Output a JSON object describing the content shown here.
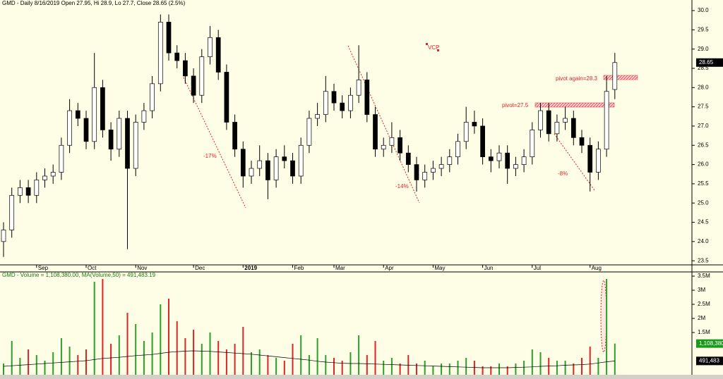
{
  "chart_data": [
    {
      "type": "candlestick",
      "title": "GMD - Daily 8/16/2019 Open 27.95, Hi 28.9, Lo 27.7, Close 28.65 (2.5%)",
      "categories": [
        null,
        null,
        null,
        null,
        "Sep",
        null,
        null,
        null,
        null,
        null,
        "Oct",
        null,
        null,
        null,
        null,
        null,
        "Nov",
        null,
        null,
        null,
        null,
        null,
        null,
        "Dec",
        null,
        null,
        null,
        null,
        null,
        "2019",
        null,
        null,
        null,
        null,
        null,
        "Feb",
        null,
        null,
        null,
        null,
        "Mar",
        null,
        null,
        null,
        null,
        null,
        "Apr",
        null,
        null,
        null,
        null,
        null,
        "May",
        null,
        null,
        null,
        null,
        null,
        "Jun",
        null,
        null,
        null,
        null,
        null,
        "Jul",
        null,
        null,
        null,
        null,
        null,
        null,
        "Aug",
        null,
        null,
        null
      ],
      "open": [
        24.0,
        24.3,
        25.2,
        25.4,
        25.2,
        25.6,
        25.7,
        25.8,
        26.5,
        27.4,
        27.2,
        26.6,
        28.0,
        26.9,
        26.4,
        27.2,
        25.9,
        27.1,
        27.4,
        28.1,
        29.7,
        28.9,
        28.7,
        28.3,
        27.8,
        28.8,
        29.3,
        28.4,
        27.1,
        26.4,
        25.7,
        25.9,
        26.1,
        25.6,
        26.2,
        26.1,
        25.7,
        26.5,
        27.2,
        27.3,
        27.9,
        27.6,
        27.4,
        27.8,
        28.2,
        27.3,
        26.4,
        26.5,
        26.7,
        26.3,
        26.0,
        25.6,
        25.8,
        25.9,
        26.0,
        26.2,
        26.6,
        27.1,
        27.0,
        26.2,
        26.1,
        26.3,
        25.9,
        26.0,
        26.2,
        26.9,
        27.4,
        26.8,
        27.1,
        27.2,
        26.7,
        26.5,
        25.8,
        26.4,
        27.95
      ],
      "high": [
        24.5,
        25.4,
        25.6,
        25.6,
        25.8,
        25.9,
        26.0,
        26.7,
        27.7,
        27.6,
        27.4,
        28.9,
        28.2,
        27.1,
        27.4,
        27.4,
        27.3,
        27.6,
        28.3,
        29.9,
        29.9,
        29.1,
        28.9,
        28.5,
        29.0,
        29.6,
        29.5,
        28.6,
        27.3,
        26.6,
        26.1,
        26.5,
        26.3,
        26.4,
        26.5,
        26.3,
        26.7,
        27.4,
        27.6,
        28.3,
        28.1,
        27.8,
        28.0,
        29.1,
        28.4,
        27.5,
        26.7,
        27.1,
        26.9,
        26.5,
        26.2,
        26.0,
        26.1,
        26.2,
        26.4,
        26.8,
        27.5,
        27.4,
        27.2,
        26.4,
        26.5,
        26.5,
        26.2,
        26.4,
        27.1,
        27.6,
        27.6,
        27.3,
        27.5,
        27.4,
        26.9,
        26.7,
        26.6,
        28.3,
        28.9
      ],
      "low": [
        23.6,
        24.1,
        25.0,
        25.0,
        25.0,
        25.4,
        25.5,
        25.6,
        26.3,
        27.0,
        26.4,
        26.4,
        26.7,
        26.1,
        26.2,
        23.8,
        25.7,
        26.9,
        27.2,
        27.9,
        28.7,
        28.5,
        28.1,
        27.6,
        27.6,
        28.6,
        28.2,
        26.9,
        26.2,
        25.4,
        25.5,
        25.7,
        25.1,
        25.4,
        25.9,
        25.5,
        25.5,
        26.3,
        27.0,
        27.1,
        27.4,
        27.2,
        27.2,
        27.6,
        27.1,
        26.2,
        26.2,
        26.3,
        26.1,
        25.8,
        25.3,
        25.4,
        25.6,
        25.7,
        25.8,
        26.0,
        26.4,
        26.8,
        26.0,
        25.8,
        25.9,
        25.5,
        25.7,
        25.8,
        26.0,
        26.7,
        26.6,
        26.6,
        26.9,
        26.5,
        26.3,
        25.3,
        25.6,
        26.2,
        27.7
      ],
      "close": [
        24.3,
        25.2,
        25.4,
        25.2,
        25.6,
        25.7,
        25.8,
        26.5,
        27.4,
        27.2,
        26.6,
        28.0,
        26.9,
        26.4,
        27.2,
        25.9,
        27.1,
        27.4,
        28.1,
        29.7,
        28.9,
        28.7,
        28.3,
        27.8,
        28.8,
        29.3,
        28.4,
        27.1,
        26.4,
        25.7,
        25.9,
        26.1,
        25.6,
        26.2,
        26.1,
        25.7,
        26.5,
        27.2,
        27.3,
        27.9,
        27.6,
        27.4,
        27.8,
        28.2,
        27.3,
        26.4,
        26.5,
        26.7,
        26.3,
        26.0,
        25.6,
        25.8,
        25.9,
        26.0,
        26.2,
        26.6,
        27.1,
        27.0,
        26.2,
        26.1,
        26.3,
        25.9,
        26.0,
        26.2,
        26.9,
        27.4,
        26.8,
        27.1,
        27.2,
        26.7,
        26.5,
        25.8,
        26.4,
        27.9,
        28.65
      ],
      "ylim": [
        23.43,
        30.22
      ],
      "yticks": [
        23.5,
        {
          "value": 24,
          "label": "24.0"
        },
        24.5,
        {
          "value": 25,
          "label": "25.0"
        },
        25.5,
        {
          "value": 26,
          "label": "26.0"
        },
        26.5,
        {
          "value": 27,
          "label": "27.0"
        },
        27.5,
        {
          "value": 28,
          "label": "28.0"
        },
        28.5,
        {
          "value": 29,
          "label": "29.0"
        },
        29.5,
        {
          "value": 30,
          "label": "30.0"
        }
      ],
      "annotations": [
        "-17%",
        "-14%",
        "-8%",
        "VCP",
        "pivot=27.5",
        "pivot again=28.3"
      ]
    },
    {
      "type": "bar",
      "title": "GMD - Volume = 1,108,380.00, MA(Volume,50) = 491,483.19",
      "values": [
        400000,
        1200000,
        600000,
        900000,
        700000,
        500000,
        800000,
        1300000,
        1000000,
        700000,
        900000,
        3300000,
        3400000,
        1100000,
        1400000,
        2200000,
        1800000,
        1200000,
        1500000,
        2500000,
        2700000,
        1900000,
        1300000,
        1600000,
        1100000,
        1500000,
        1200000,
        900000,
        1100000,
        1700000,
        800000,
        900000,
        700000,
        600000,
        500000,
        1100000,
        1400000,
        700000,
        1300000,
        700000,
        600000,
        500000,
        800000,
        1400000,
        700000,
        1200000,
        500000,
        600000,
        400000,
        700000,
        400000,
        500000,
        300000,
        400000,
        400000,
        500000,
        600000,
        500000,
        300000,
        300000,
        400000,
        300000,
        400000,
        500000,
        900000,
        800000,
        600000,
        500000,
        500000,
        400000,
        600000,
        1000000,
        600000,
        3400000,
        1108380
      ],
      "ma": [
        300000,
        320000,
        340000,
        360000,
        380000,
        400000,
        420000,
        440000,
        460000,
        480000,
        500000,
        540000,
        580000,
        600000,
        620000,
        650000,
        680000,
        700000,
        720000,
        760000,
        800000,
        820000,
        840000,
        850000,
        840000,
        830000,
        810000,
        790000,
        770000,
        750000,
        730000,
        700000,
        670000,
        640000,
        610000,
        580000,
        550000,
        520000,
        480000,
        450000,
        430000,
        410000,
        400000,
        400000,
        390000,
        380000,
        370000,
        360000,
        350000,
        340000,
        330000,
        320000,
        310000,
        300000,
        290000,
        280000,
        270000,
        260000,
        250000,
        250000,
        250000,
        250000,
        260000,
        270000,
        280000,
        300000,
        310000,
        320000,
        340000,
        350000,
        360000,
        380000,
        420000,
        460000,
        491483
      ],
      "value_label": "1,108,380",
      "ma_label": "491,483",
      "ylim": [
        0,
        3650000
      ],
      "yticks": [
        {
          "value": 1500000,
          "label": "1.5M"
        },
        {
          "value": 2000000,
          "label": "2M"
        },
        {
          "value": 2500000,
          "label": "2.5M"
        },
        {
          "value": 3000000,
          "label": "3M"
        },
        {
          "value": 3500000,
          "label": "3.5M"
        }
      ]
    }
  ]
}
